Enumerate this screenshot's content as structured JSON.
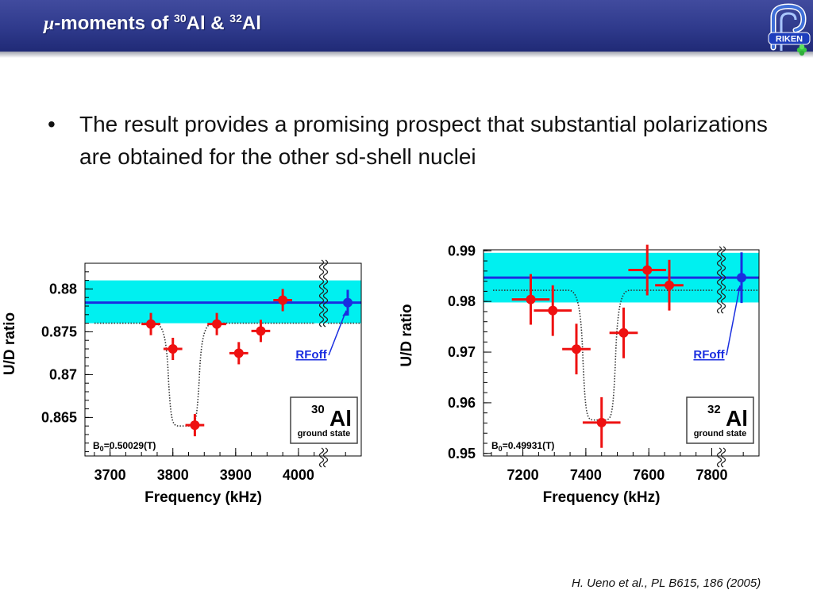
{
  "slide": {
    "title": {
      "prefix": "μ",
      "part1": "-moments of ",
      "sup1": "30",
      "part2": "Al & ",
      "sup2": "32",
      "part3": "Al"
    },
    "logo_text": "RIKEN",
    "bullet": "The result provides a promising prospect that substantial polarizations are obtained for the other sd-shell nuclei",
    "citation": "H. Ueno et al., PL B615, 186 (2005)"
  },
  "colors": {
    "header": "#2f3a8c",
    "band": "#00f0f0",
    "rfoff_line": "#1a2ee0",
    "data_points": "#ee1111",
    "rfoff_point": "#1a2ee0"
  },
  "chart_data": [
    {
      "type": "scatter",
      "xlabel": "Frequency (kHz)",
      "ylabel": "U/D ratio",
      "xlim": [
        3660,
        4100
      ],
      "ylim": [
        0.8605,
        0.883
      ],
      "xticks": [
        3700,
        3800,
        3900,
        4000
      ],
      "yticks": [
        0.865,
        0.87,
        0.875,
        0.88
      ],
      "xtick_labels": [
        "3700",
        "3800",
        "3900",
        "4000"
      ],
      "ytick_labels": [
        "0.865",
        "0.87",
        "0.875",
        "0.88"
      ],
      "band": [
        0.876,
        0.881
      ],
      "rfoff_level": 0.8784,
      "dotted_curve": {
        "baseline": 0.876,
        "dip_min": 0.864,
        "dip_x": [
          3790,
          3845
        ]
      },
      "points": [
        {
          "x": 3765,
          "y": 0.8759,
          "xerr": 15,
          "yerr": 0.0013
        },
        {
          "x": 3800,
          "y": 0.873,
          "xerr": 15,
          "yerr": 0.0013
        },
        {
          "x": 3835,
          "y": 0.8641,
          "xerr": 15,
          "yerr": 0.0013
        },
        {
          "x": 3870,
          "y": 0.8759,
          "xerr": 15,
          "yerr": 0.0013
        },
        {
          "x": 3905,
          "y": 0.8725,
          "xerr": 15,
          "yerr": 0.0013
        },
        {
          "x": 3940,
          "y": 0.8751,
          "xerr": 15,
          "yerr": 0.0013
        },
        {
          "x": 3975,
          "y": 0.8787,
          "xerr": 15,
          "yerr": 0.0013
        }
      ],
      "rfoff_label": "RFoff",
      "rfoff_point": {
        "y": 0.8784,
        "yerr": 0.0015
      },
      "isotope": {
        "mass": "30",
        "symbol": "Al",
        "state": "ground state"
      },
      "b0_label": {
        "prefix": "B",
        "sub": "0",
        "value": "=0.50029(T)"
      }
    },
    {
      "type": "scatter",
      "xlabel": "Frequency (kHz)",
      "ylabel": "U/D ratio",
      "xlim": [
        7075,
        7950
      ],
      "ylim": [
        0.9495,
        0.9902
      ],
      "xticks": [
        7200,
        7400,
        7600,
        7800
      ],
      "yticks": [
        0.95,
        0.96,
        0.97,
        0.98,
        0.99
      ],
      "xtick_labels": [
        "7200",
        "7400",
        "7600",
        "7800"
      ],
      "ytick_labels": [
        "0.95",
        "0.96",
        "0.97",
        "0.98",
        "0.99"
      ],
      "band": [
        0.9798,
        0.9896
      ],
      "rfoff_level": 0.9847,
      "dotted_curve": {
        "baseline": 0.9822,
        "dip_min": 0.9566,
        "dip_x": [
          7385,
          7500
        ]
      },
      "points": [
        {
          "x": 7225,
          "y": 0.9804,
          "xerr": 60,
          "yerr": 0.005
        },
        {
          "x": 7295,
          "y": 0.9782,
          "xerr": 60,
          "yerr": 0.005
        },
        {
          "x": 7370,
          "y": 0.9706,
          "xerr": 45,
          "yerr": 0.005
        },
        {
          "x": 7450,
          "y": 0.9561,
          "xerr": 60,
          "yerr": 0.005
        },
        {
          "x": 7520,
          "y": 0.9738,
          "xerr": 45,
          "yerr": 0.005
        },
        {
          "x": 7595,
          "y": 0.9862,
          "xerr": 60,
          "yerr": 0.005
        },
        {
          "x": 7665,
          "y": 0.9832,
          "xerr": 45,
          "yerr": 0.005
        }
      ],
      "rfoff_label": "RFoff",
      "rfoff_point": {
        "y": 0.9847,
        "yerr": 0.005
      },
      "isotope": {
        "mass": "32",
        "symbol": "Al",
        "state": "ground state"
      },
      "b0_label": {
        "prefix": "B",
        "sub": "0",
        "value": "=0.49931(T)"
      }
    }
  ]
}
